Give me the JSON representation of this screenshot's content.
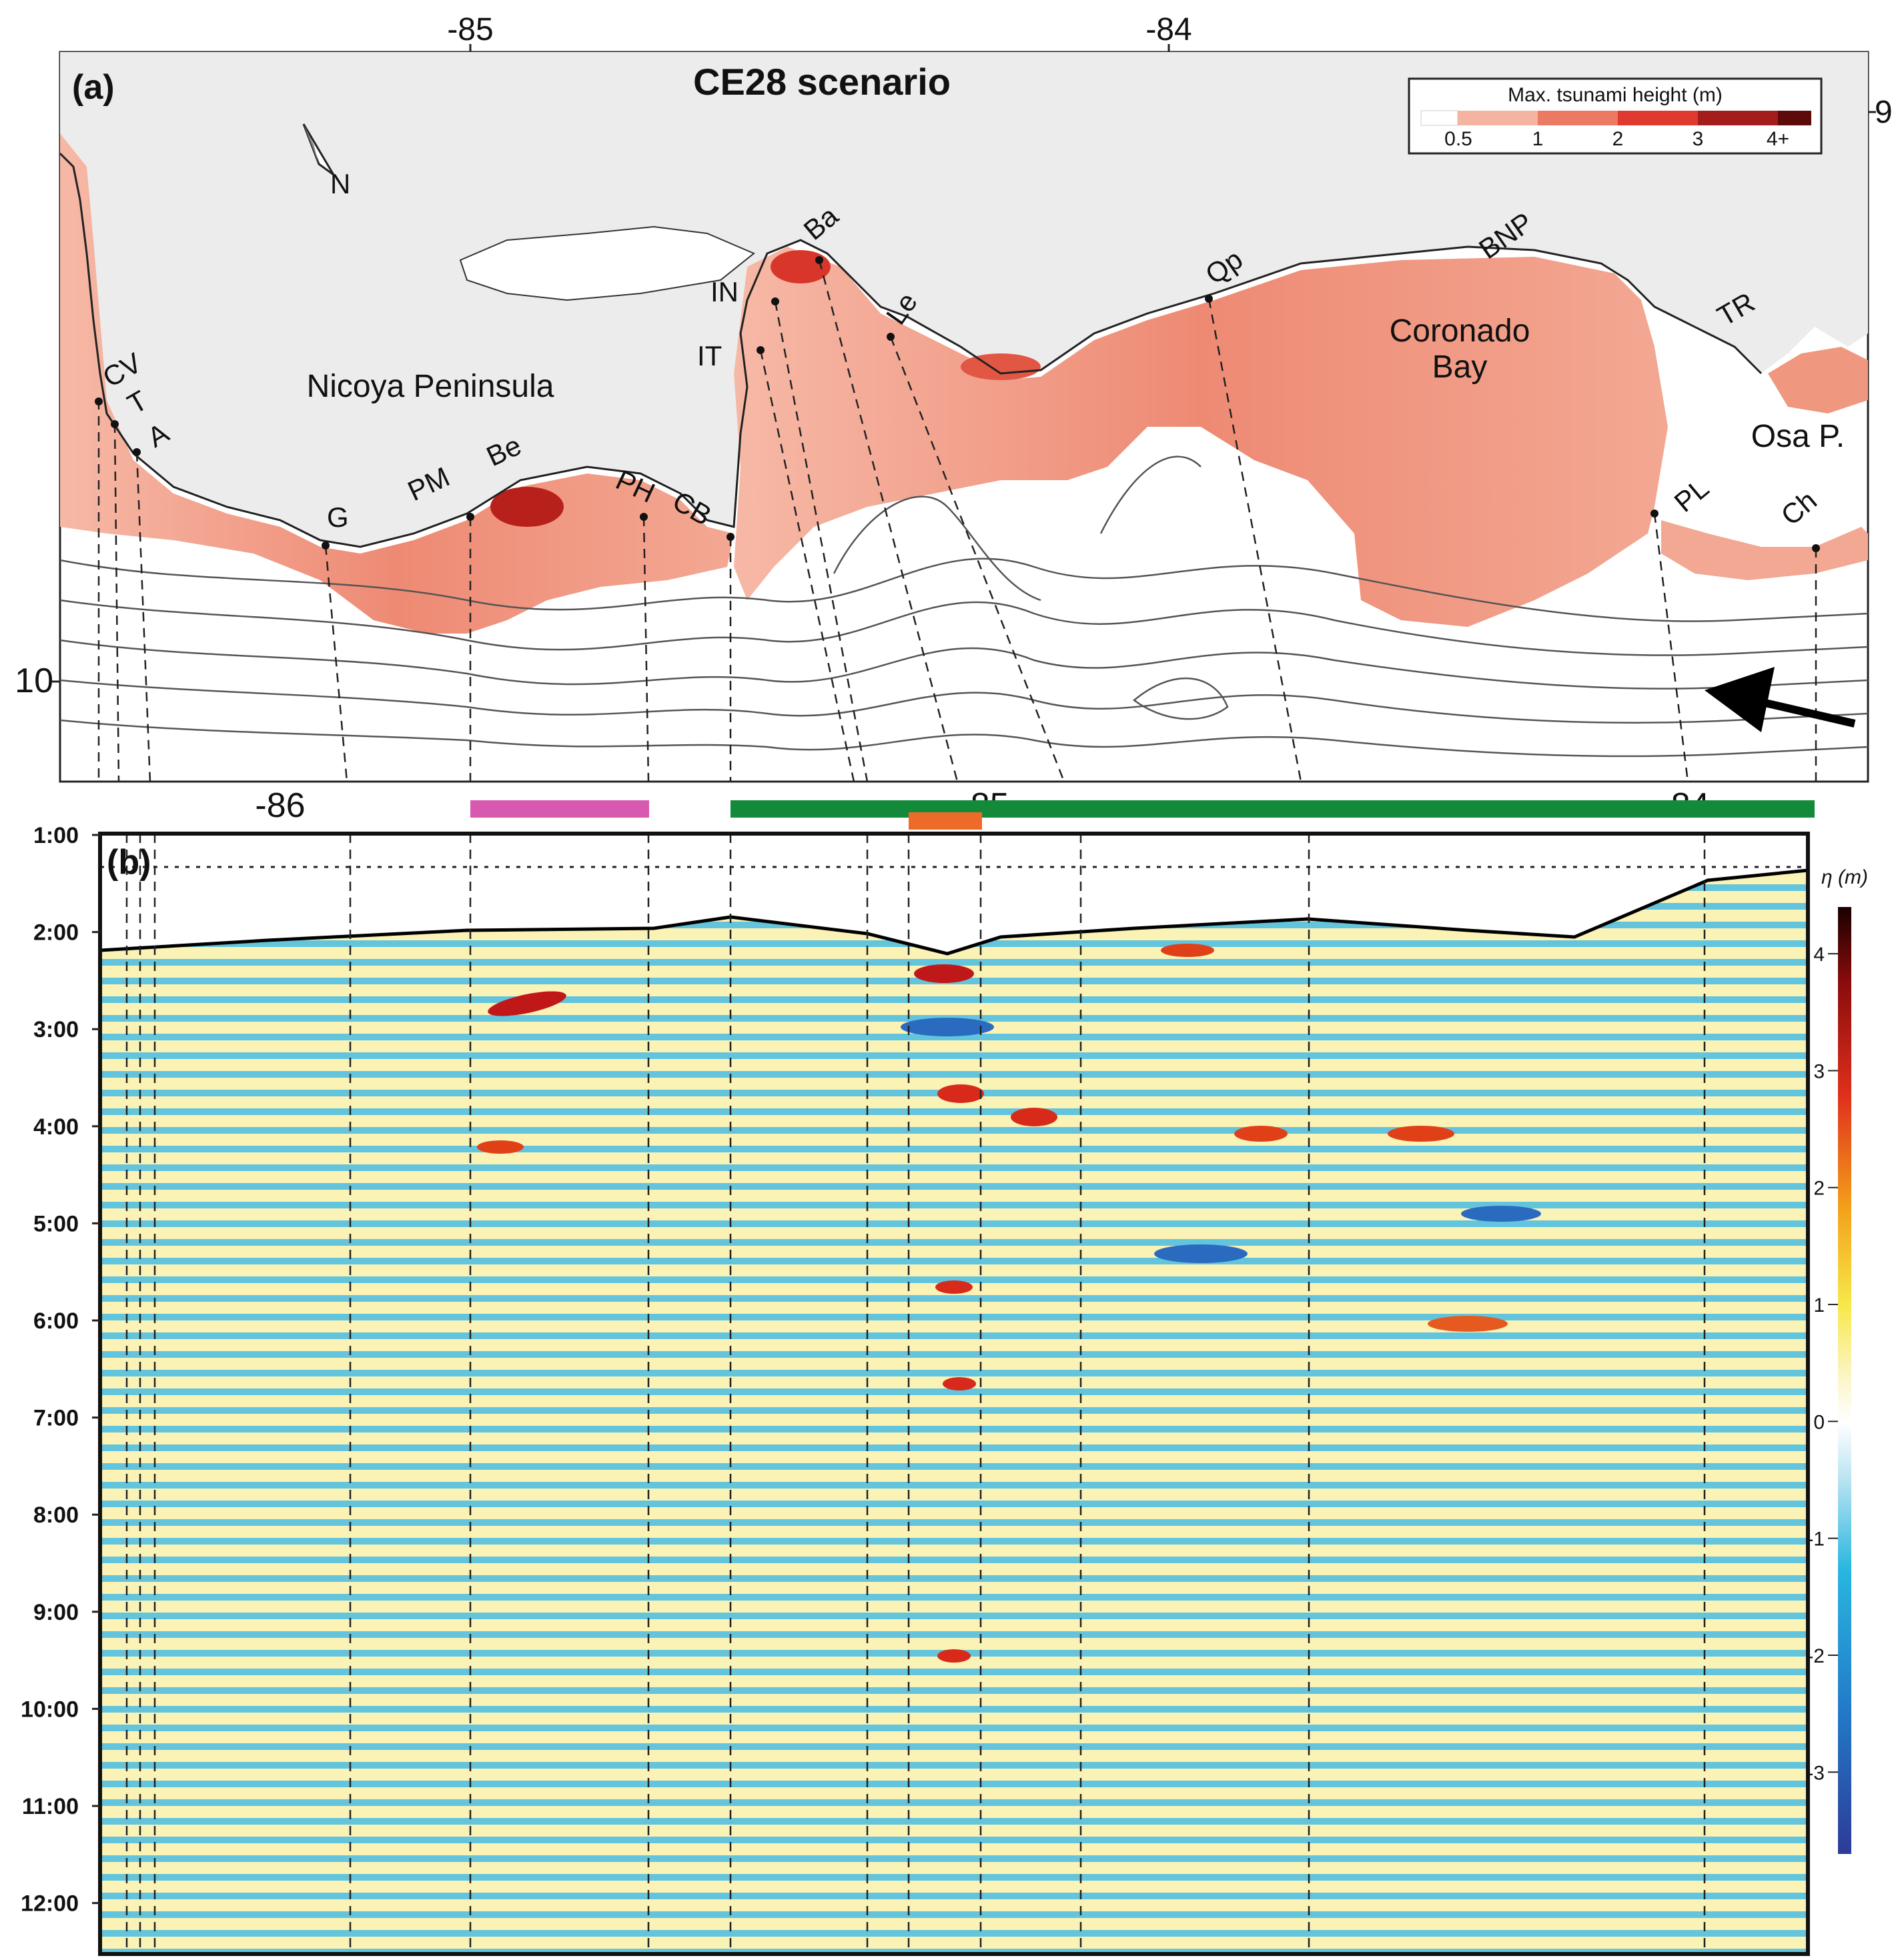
{
  "panel_a": {
    "label": "(a)",
    "title": "CE28 scenario",
    "north_label": "N",
    "top_axis_ticks": [
      "-85",
      "-84"
    ],
    "right_axis_ticks": [
      "9"
    ],
    "left_axis_ticks": [
      "10"
    ],
    "bottom_axis_ticks": [
      "-86",
      "-85",
      "-84"
    ],
    "legend": {
      "title": "Max. tsunami height (m)",
      "ticks": [
        "0.5",
        "1",
        "2",
        "3",
        "4+"
      ],
      "colors": [
        "#ffffff",
        "#f4b4a0",
        "#ec7a62",
        "#e03a30",
        "#a41c1c",
        "#5c0a0a"
      ]
    },
    "regions": {
      "peninsula": "Nicoya Peninsula",
      "bay_line1": "Coronado",
      "bay_line2": "Bay",
      "osa": "Osa P."
    },
    "sites": [
      "CV",
      "T",
      "A",
      "G",
      "PM",
      "Be",
      "PH",
      "CB",
      "IT",
      "IN",
      "Ba",
      "Le",
      "Qp",
      "BNP",
      "TR",
      "PL",
      "Ch"
    ],
    "colors": {
      "land": "#ececed",
      "sea": "#ffffff",
      "contour": "#555555"
    }
  },
  "range_bars": {
    "magenta": "#d85ab0",
    "green": "#128a3a",
    "orange": "#ee6a28"
  },
  "panel_b": {
    "label": "(b)",
    "time_ticks": [
      "1:00",
      "2:00",
      "3:00",
      "4:00",
      "5:00",
      "6:00",
      "7:00",
      "8:00",
      "9:00",
      "10:00",
      "11:00",
      "12:00"
    ],
    "colorbar": {
      "title": "η (m)",
      "ticks": [
        "4",
        "3",
        "2",
        "1",
        "0",
        "-1",
        "-2",
        "-3"
      ],
      "range": [
        -3.7,
        4.4
      ]
    }
  }
}
